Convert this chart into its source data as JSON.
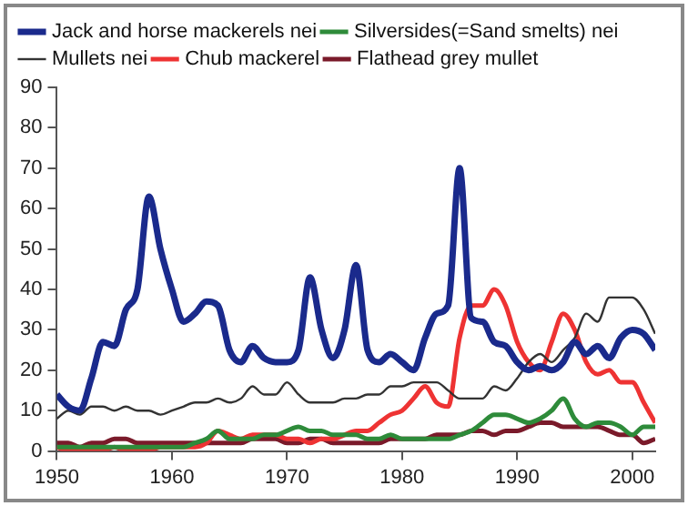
{
  "chart_data": {
    "type": "line",
    "x": [
      1950,
      1951,
      1952,
      1953,
      1954,
      1955,
      1956,
      1957,
      1958,
      1959,
      1960,
      1961,
      1962,
      1963,
      1964,
      1965,
      1966,
      1967,
      1968,
      1969,
      1970,
      1971,
      1972,
      1973,
      1974,
      1975,
      1976,
      1977,
      1978,
      1979,
      1980,
      1981,
      1982,
      1983,
      1984,
      1985,
      1986,
      1987,
      1988,
      1989,
      1990,
      1991,
      1992,
      1993,
      1994,
      1995,
      1996,
      1997,
      1998,
      1999,
      2000,
      2001,
      2002
    ],
    "series": [
      {
        "name": "Jack and horse mackerels nei",
        "color": "#1a2a8c",
        "values": [
          14,
          11,
          10,
          18,
          27,
          26,
          35,
          40,
          63,
          50,
          40,
          32,
          34,
          37,
          36,
          25,
          22,
          26,
          23,
          22,
          22,
          25,
          43,
          30,
          23,
          30,
          46,
          25,
          22,
          24,
          22,
          20,
          28,
          34,
          36,
          70,
          33,
          32,
          27,
          26,
          22,
          20,
          21,
          20,
          22,
          27,
          24,
          26,
          23,
          28,
          30,
          29,
          25
        ]
      },
      {
        "name": "Silversides(=Sand smelts) nei",
        "color": "#2e8b3a",
        "values": [
          1,
          1,
          1,
          1,
          1,
          1,
          1,
          1,
          1,
          1,
          1,
          1,
          2,
          3,
          5,
          3,
          3,
          3,
          4,
          4,
          5,
          6,
          5,
          5,
          4,
          4,
          4,
          3,
          3,
          4,
          3,
          3,
          3,
          3,
          3,
          4,
          5,
          7,
          9,
          9,
          8,
          7,
          8,
          10,
          13,
          8,
          6,
          7,
          7,
          6,
          4,
          6,
          6
        ]
      },
      {
        "name": "Mullets nei",
        "color": "#333333",
        "values": [
          8,
          10,
          9,
          11,
          11,
          10,
          11,
          10,
          10,
          9,
          10,
          11,
          12,
          12,
          13,
          12,
          13,
          16,
          14,
          14,
          17,
          14,
          12,
          12,
          12,
          13,
          13,
          14,
          14,
          16,
          16,
          17,
          17,
          17,
          15,
          13,
          13,
          13,
          16,
          15,
          18,
          22,
          24,
          22,
          25,
          28,
          34,
          32,
          38,
          38,
          38,
          35,
          29
        ]
      },
      {
        "name": "Chub mackerel",
        "color": "#ee3333",
        "values": [
          1,
          0,
          0,
          0,
          0,
          1,
          0,
          0,
          0,
          1,
          1,
          1,
          1,
          2,
          5,
          4,
          3,
          4,
          4,
          4,
          3,
          3,
          2,
          3,
          3,
          4,
          5,
          5,
          7,
          9,
          10,
          13,
          16,
          12,
          11,
          28,
          36,
          36,
          40,
          36,
          27,
          22,
          20,
          27,
          34,
          30,
          22,
          19,
          20,
          17,
          17,
          12,
          7
        ]
      },
      {
        "name": "Flathead grey mullet",
        "color": "#7a1a2a",
        "values": [
          2,
          2,
          1,
          2,
          2,
          3,
          3,
          2,
          2,
          2,
          2,
          2,
          2,
          2,
          2,
          2,
          2,
          3,
          3,
          3,
          2,
          2,
          3,
          3,
          2,
          2,
          2,
          2,
          2,
          3,
          3,
          3,
          3,
          4,
          4,
          4,
          5,
          5,
          4,
          5,
          5,
          6,
          7,
          7,
          6,
          6,
          6,
          6,
          5,
          4,
          4,
          2,
          3
        ]
      }
    ],
    "xlim": [
      1950,
      2002
    ],
    "xticks": [
      1950,
      1960,
      1970,
      1980,
      1990,
      2000
    ],
    "ylim": [
      0,
      90
    ],
    "yticks": [
      0,
      10,
      20,
      30,
      40,
      50,
      60,
      70,
      80,
      90
    ],
    "grid": false,
    "legend": "top left",
    "marker": "none",
    "line_style": "solid"
  }
}
